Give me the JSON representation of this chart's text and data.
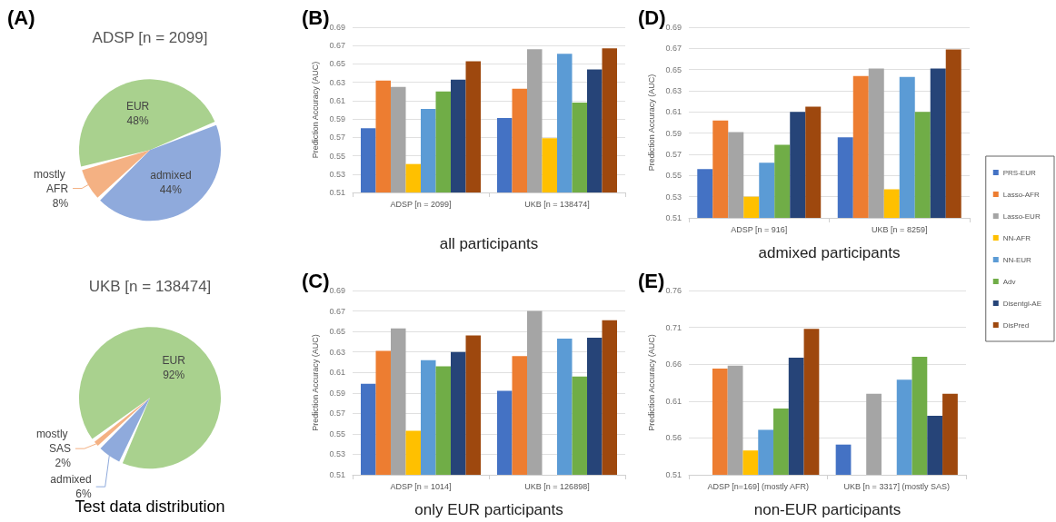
{
  "chart_data": [
    {
      "type": "pie",
      "title": "ADSP [n = 2099]",
      "annotations": [
        "(A)"
      ],
      "categories": [
        "EUR",
        "admixed",
        "mostly AFR"
      ],
      "values": [
        48,
        44,
        8
      ],
      "value_labels": [
        "48%",
        "44%",
        "8%"
      ],
      "colors": [
        "#a9d18e",
        "#8faadc",
        "#f4b183"
      ],
      "legend": false
    },
    {
      "type": "pie",
      "title": "UKB [n = 138474]",
      "annotations": [
        "Test data distribution"
      ],
      "categories": [
        "EUR",
        "admixed",
        "mostly SAS"
      ],
      "values": [
        92,
        6,
        2
      ],
      "value_labels": [
        "92%",
        "6%",
        "2%"
      ],
      "colors": [
        "#a9d18e",
        "#8faadc",
        "#f4b183"
      ],
      "legend": false
    },
    {
      "type": "bar",
      "annotations": [
        "(B)"
      ],
      "xlabel": "all participants",
      "ylabel": "Prediction Accuracy (AUC)",
      "categories": [
        "ADSP [n = 2099]",
        "UKB [n = 138474]"
      ],
      "ylim": [
        0.51,
        0.69
      ],
      "yticks": [
        0.51,
        0.53,
        0.55,
        0.57,
        0.59,
        0.61,
        0.63,
        0.65,
        0.67,
        0.69
      ],
      "grid": "y",
      "legend": false,
      "series": [
        {
          "color": "#4472c4",
          "values": [
            0.58,
            0.591
          ]
        },
        {
          "color": "#ed7d31",
          "values": [
            0.632,
            0.623
          ]
        },
        {
          "color": "#a5a5a5",
          "values": [
            0.625,
            0.666
          ]
        },
        {
          "color": "#ffc000",
          "values": [
            0.541,
            0.569
          ]
        },
        {
          "color": "#5b9bd5",
          "values": [
            0.601,
            0.661
          ]
        },
        {
          "color": "#70ad47",
          "values": [
            0.62,
            0.608
          ]
        },
        {
          "color": "#264478",
          "values": [
            0.633,
            0.644
          ]
        },
        {
          "color": "#9e480e",
          "values": [
            0.653,
            0.667
          ]
        }
      ]
    },
    {
      "type": "bar",
      "annotations": [
        "(D)"
      ],
      "xlabel": "admixed participants",
      "ylabel": "Prediction Accuracy (AUC)",
      "categories": [
        "ADSP [n = 916]",
        "UKB [n = 8259]"
      ],
      "ylim": [
        0.51,
        0.69
      ],
      "yticks": [
        0.51,
        0.53,
        0.55,
        0.57,
        0.59,
        0.61,
        0.63,
        0.65,
        0.67,
        0.69
      ],
      "grid": "y",
      "legend": "right",
      "series": [
        {
          "name": "PRS-EUR",
          "color": "#4472c4",
          "values": [
            0.556,
            0.586
          ]
        },
        {
          "name": "Lasso-AFR",
          "color": "#ed7d31",
          "values": [
            0.602,
            0.644
          ]
        },
        {
          "name": "Lasso-EUR",
          "color": "#a5a5a5",
          "values": [
            0.591,
            0.651
          ]
        },
        {
          "name": "NN-AFR",
          "color": "#ffc000",
          "values": [
            0.53,
            0.537
          ]
        },
        {
          "name": "NN-EUR",
          "color": "#5b9bd5",
          "values": [
            0.562,
            0.643
          ]
        },
        {
          "name": "Adv",
          "color": "#70ad47",
          "values": [
            0.579,
            0.61
          ]
        },
        {
          "name": "Disentgl-AE",
          "color": "#264478",
          "values": [
            0.61,
            0.651
          ]
        },
        {
          "name": "DisPred",
          "color": "#9e480e",
          "values": [
            0.615,
            0.669
          ]
        }
      ]
    },
    {
      "type": "bar",
      "annotations": [
        "(C)"
      ],
      "xlabel": "only EUR participants",
      "ylabel": "Prediction Accuracy (AUC)",
      "categories": [
        "ADSP [n = 1014]",
        "UKB [n = 126898]"
      ],
      "ylim": [
        0.51,
        0.69
      ],
      "yticks": [
        0.51,
        0.53,
        0.55,
        0.57,
        0.59,
        0.61,
        0.63,
        0.65,
        0.67,
        0.69
      ],
      "grid": "y",
      "legend": false,
      "series": [
        {
          "color": "#4472c4",
          "values": [
            0.599,
            0.592
          ]
        },
        {
          "color": "#ed7d31",
          "values": [
            0.631,
            0.626
          ]
        },
        {
          "color": "#a5a5a5",
          "values": [
            0.653,
            0.67
          ]
        },
        {
          "color": "#ffc000",
          "values": [
            0.553,
            null
          ]
        },
        {
          "color": "#5b9bd5",
          "values": [
            0.622,
            0.643
          ]
        },
        {
          "color": "#70ad47",
          "values": [
            0.616,
            0.606
          ]
        },
        {
          "color": "#264478",
          "values": [
            0.63,
            0.644
          ]
        },
        {
          "color": "#9e480e",
          "values": [
            0.646,
            0.661
          ]
        }
      ]
    },
    {
      "type": "bar",
      "annotations": [
        "(E)"
      ],
      "xlabel": "non-EUR participants",
      "ylabel": "Prediction Accuracy (AUC)",
      "categories": [
        "ADSP [n=169] (mostly AFR)",
        "UKB [n = 3317] (mostly SAS)"
      ],
      "ylim": [
        0.51,
        0.76
      ],
      "yticks": [
        0.51,
        0.56,
        0.61,
        0.66,
        0.71,
        0.76
      ],
      "grid": "y",
      "legend": false,
      "series": [
        {
          "color": "#4472c4",
          "values": [
            null,
            0.551
          ]
        },
        {
          "color": "#ed7d31",
          "values": [
            0.654,
            null
          ]
        },
        {
          "color": "#a5a5a5",
          "values": [
            0.658,
            0.62
          ]
        },
        {
          "color": "#ffc000",
          "values": [
            0.543,
            null
          ]
        },
        {
          "color": "#5b9bd5",
          "values": [
            0.571,
            0.639
          ]
        },
        {
          "color": "#70ad47",
          "values": [
            0.6,
            0.67
          ]
        },
        {
          "color": "#264478",
          "values": [
            0.669,
            0.59
          ]
        },
        {
          "color": "#9e480e",
          "values": [
            0.708,
            0.62
          ]
        }
      ]
    }
  ]
}
